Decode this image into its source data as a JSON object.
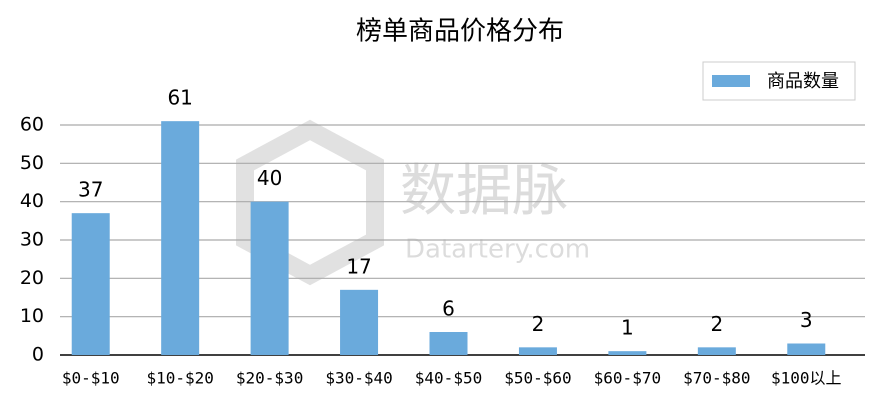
{
  "chart_data": {
    "type": "bar",
    "title": "榜单商品价格分布",
    "categories": [
      "$0-$10",
      "$10-$20",
      "$20-$30",
      "$30-$40",
      "$40-$50",
      "$50-$60",
      "$60-$70",
      "$70-$80",
      "$100以上"
    ],
    "series": [
      {
        "name": "商品数量",
        "color": "#6aaadc",
        "values": [
          37,
          61,
          40,
          17,
          6,
          2,
          1,
          2,
          3
        ]
      }
    ],
    "ylim": [
      0,
      60
    ],
    "yticks": [
      0,
      10,
      20,
      30,
      40,
      50,
      60
    ],
    "grid": true,
    "legend": "top-right",
    "watermark": [
      "数据脉",
      "Datartery.com"
    ]
  }
}
